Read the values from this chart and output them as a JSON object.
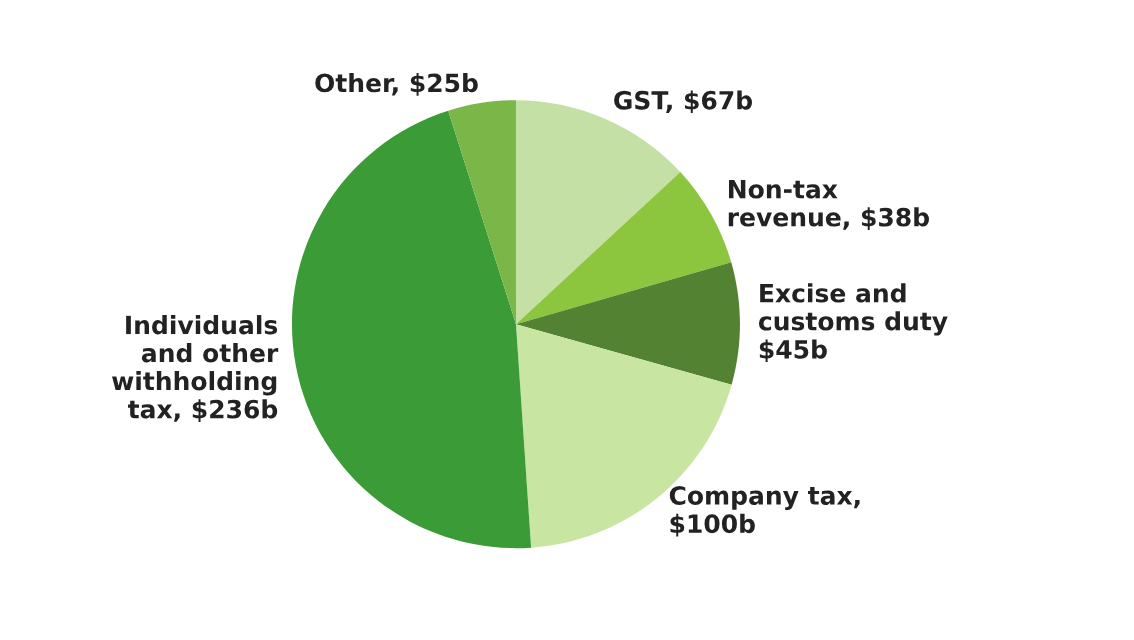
{
  "chart_data": {
    "type": "pie",
    "categories": [
      "GST, $67b",
      "Non-tax\nrevenue, $38b",
      "Excise and\ncustoms duty\n$45b",
      "Company tax,\n$100b",
      "Individuals\nand other\nwithholding\ntax, $236b",
      "Other, $25b"
    ],
    "values": [
      67,
      38,
      45,
      100,
      236,
      25
    ],
    "colors": [
      "#c5e0a5",
      "#8cc63e",
      "#548233",
      "#c8e6a2",
      "#3a9b37",
      "#7ab648"
    ],
    "legend": false
  }
}
